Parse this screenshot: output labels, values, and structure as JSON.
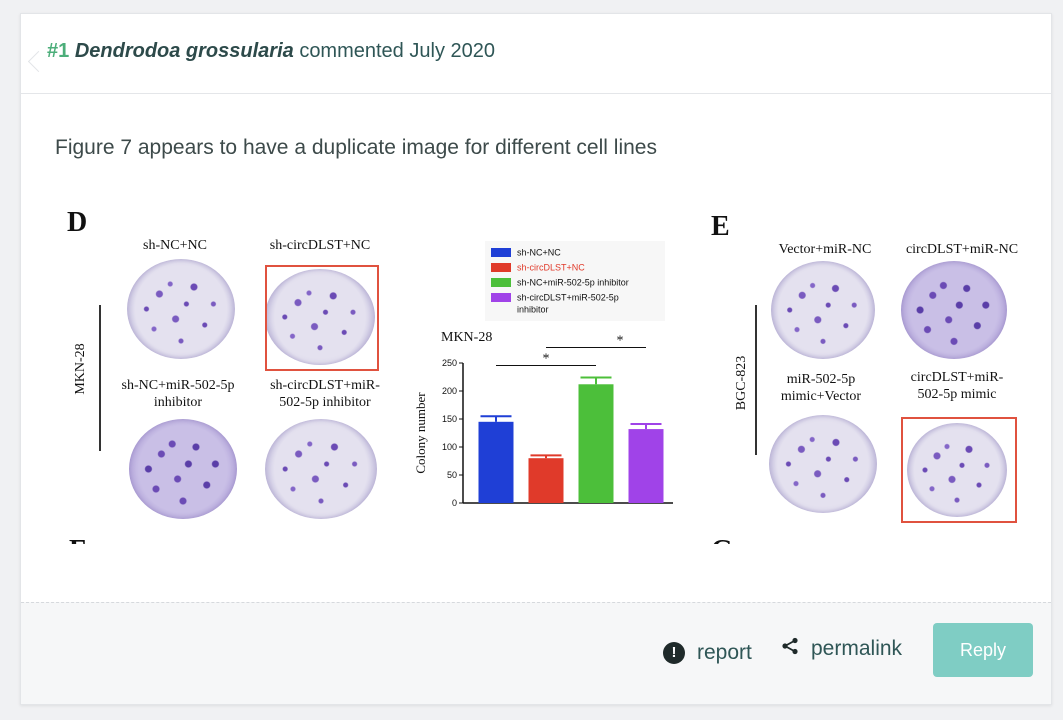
{
  "comment": {
    "number": "#1",
    "author": "Dendrodoa grossularia",
    "verb": "commented",
    "date": "July 2020",
    "text": "Figure 7 appears to have a duplicate image for different cell lines"
  },
  "figure": {
    "panel_d": {
      "letter": "D",
      "cell_line": "MKN-28",
      "plates": [
        "sh-NC+NC",
        "sh-circDLST+NC",
        "sh-NC+miR-502-5p inhibitor",
        "sh-circDLST+miR-502-5p inhibitor"
      ],
      "plate_labels_display": {
        "p1": "sh-NC+NC",
        "p2": "sh-circDLST+NC",
        "p3_line1": "sh-NC+miR-502-5p",
        "p3_line2": "inhibitor",
        "p4_line1": "sh-circDLST+miR-",
        "p4_line2": "502-5p inhibitor"
      }
    },
    "panel_e": {
      "letter": "E",
      "cell_line": "BGC-823",
      "plate_labels_display": {
        "p1": "Vector+miR-NC",
        "p2": "circDLST+miR-NC",
        "p3_line1": "miR-502-5p",
        "p3_line2": "mimic+Vector",
        "p4_line1": "circDLST+miR-",
        "p4_line2": "502-5p mimic"
      }
    },
    "cut_letters": [
      "F",
      "G"
    ],
    "highlight_color": "#e0523f"
  },
  "chart_data": {
    "type": "bar",
    "title": "MKN-28",
    "ylabel": "Colony number",
    "xlabel": "",
    "ylim": [
      0,
      250
    ],
    "yticks": [
      0,
      50,
      100,
      150,
      200,
      250
    ],
    "categories": [
      "sh-NC+NC",
      "sh-circDLST+NC",
      "sh-NC+miR-502-5p inhibitor",
      "sh-circDLST+miR-502-5p inhibitor"
    ],
    "values": [
      145,
      80,
      212,
      132
    ],
    "errors": [
      10,
      5,
      12,
      9
    ],
    "colors": [
      "#1f3fd6",
      "#e03a2a",
      "#4cbf3a",
      "#a043e8"
    ],
    "legend": [
      "sh-NC+NC",
      "sh-circDLST+NC",
      "sh-NC+miR-502-5p inhibitor",
      "sh-circDLST+miR-502-5p inhibitor"
    ],
    "legend_display": [
      "sh-NC+NC",
      "sh-circDLST+NC",
      "sh-NC+miR-502-5p inhibitor",
      "sh-circDLST+miR-502-5p",
      "inhibitor"
    ],
    "significance": [
      "*",
      "*"
    ],
    "grid": false,
    "legend_placement": "top"
  },
  "footer": {
    "report_label": "report",
    "permalink_label": "permalink",
    "reply_label": "Reply",
    "reply_color": "#7fcdc4"
  }
}
